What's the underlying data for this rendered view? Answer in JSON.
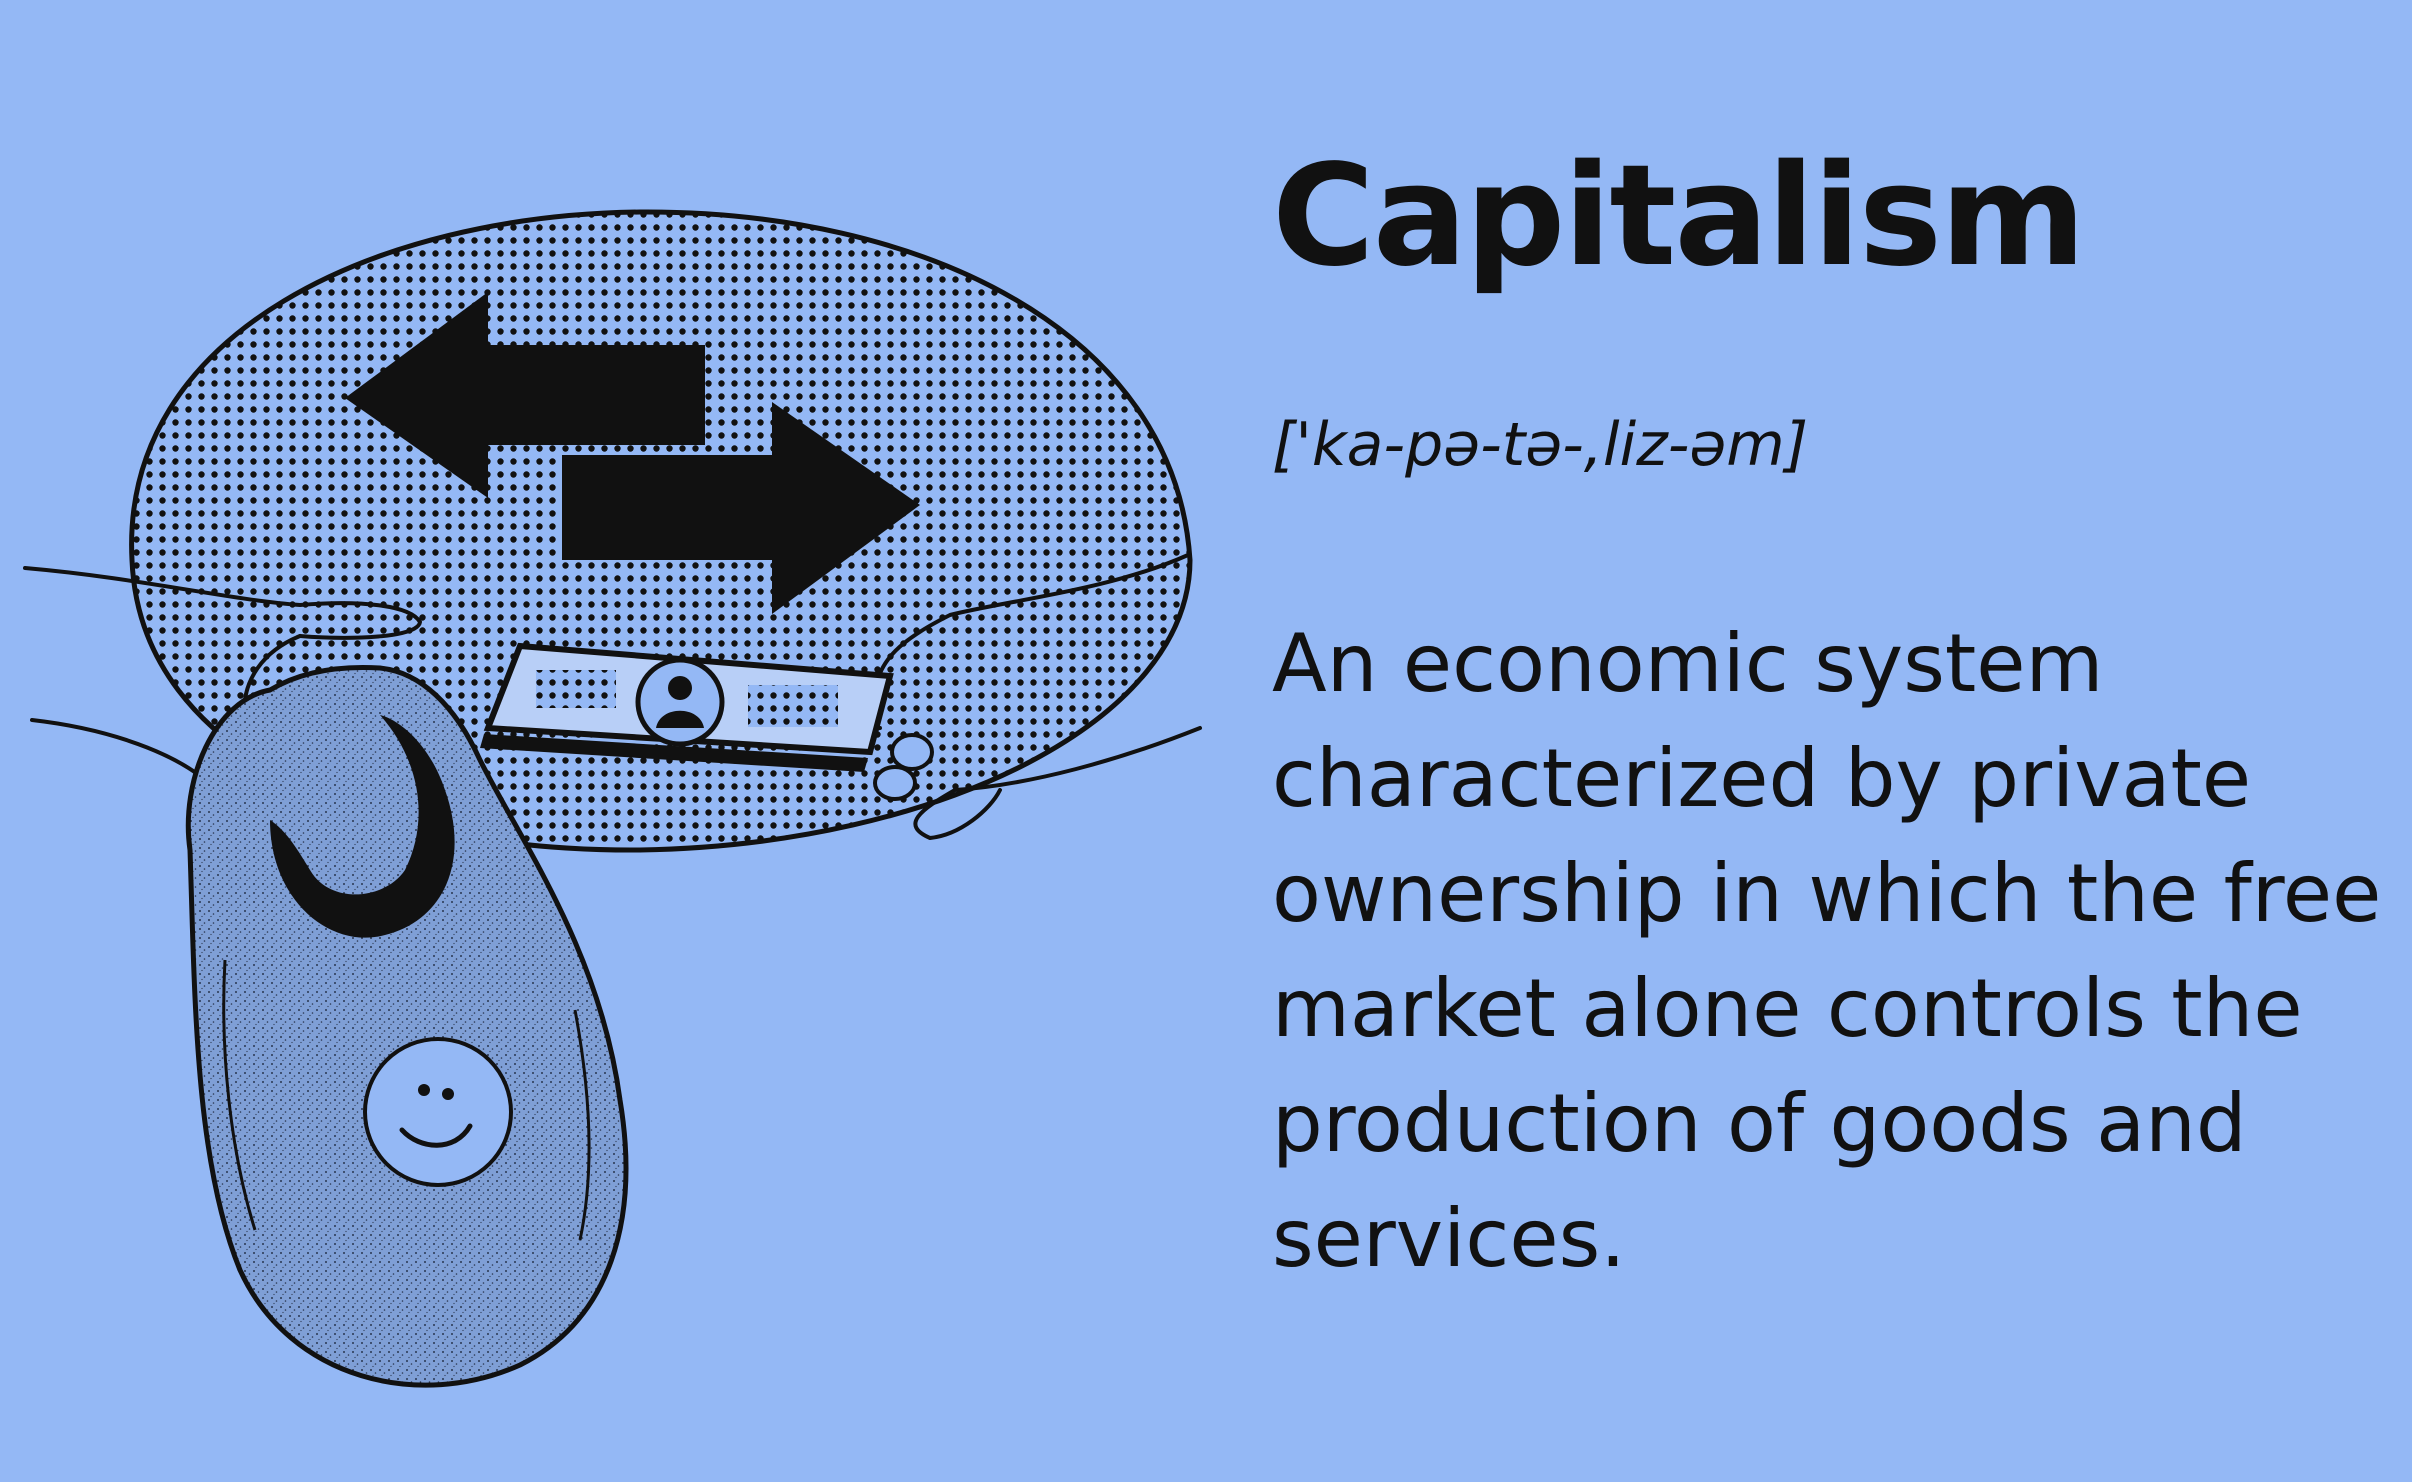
{
  "term": "Capitalism",
  "pronunciation": "['ka-pə-tə-,liz-əm]",
  "definition": "An economic system characterized by private ownership in which the free market alone controls the production of goods and services.",
  "colors": {
    "background": "#94b8f5",
    "ink": "#111111",
    "bib": "#7f9fd6"
  },
  "illustration": {
    "icons": [
      "exchange-arrows-icon",
      "banknote-icon",
      "baby-bib-icon",
      "smiley-face-icon"
    ]
  }
}
